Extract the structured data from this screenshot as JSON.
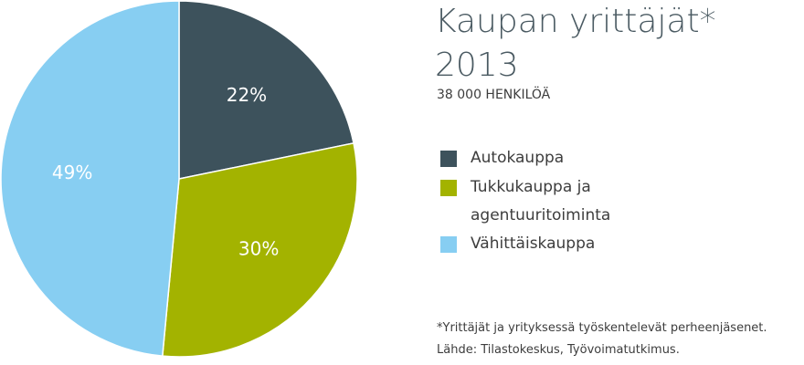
{
  "chart_data": {
    "type": "pie",
    "title": [
      "Kaupan yrittäjät*",
      "2013"
    ],
    "subtitle": "38 000 HENKILÖÄ",
    "categories": [
      "Autokauppa",
      "Tukkukauppa ja agentuuritoiminta",
      "Vähittäiskauppa"
    ],
    "values": [
      22,
      30,
      49
    ],
    "value_labels": [
      "22%",
      "30%",
      "49%"
    ],
    "colors": [
      "#3d525c",
      "#a3b300",
      "#87cef2"
    ],
    "notes": [
      "*Yrittäjät ja yrityksessä työskentelevät perheenjäsenet.",
      "Lähde: Tilastokeskus, Työvoimatutkimus."
    ]
  }
}
